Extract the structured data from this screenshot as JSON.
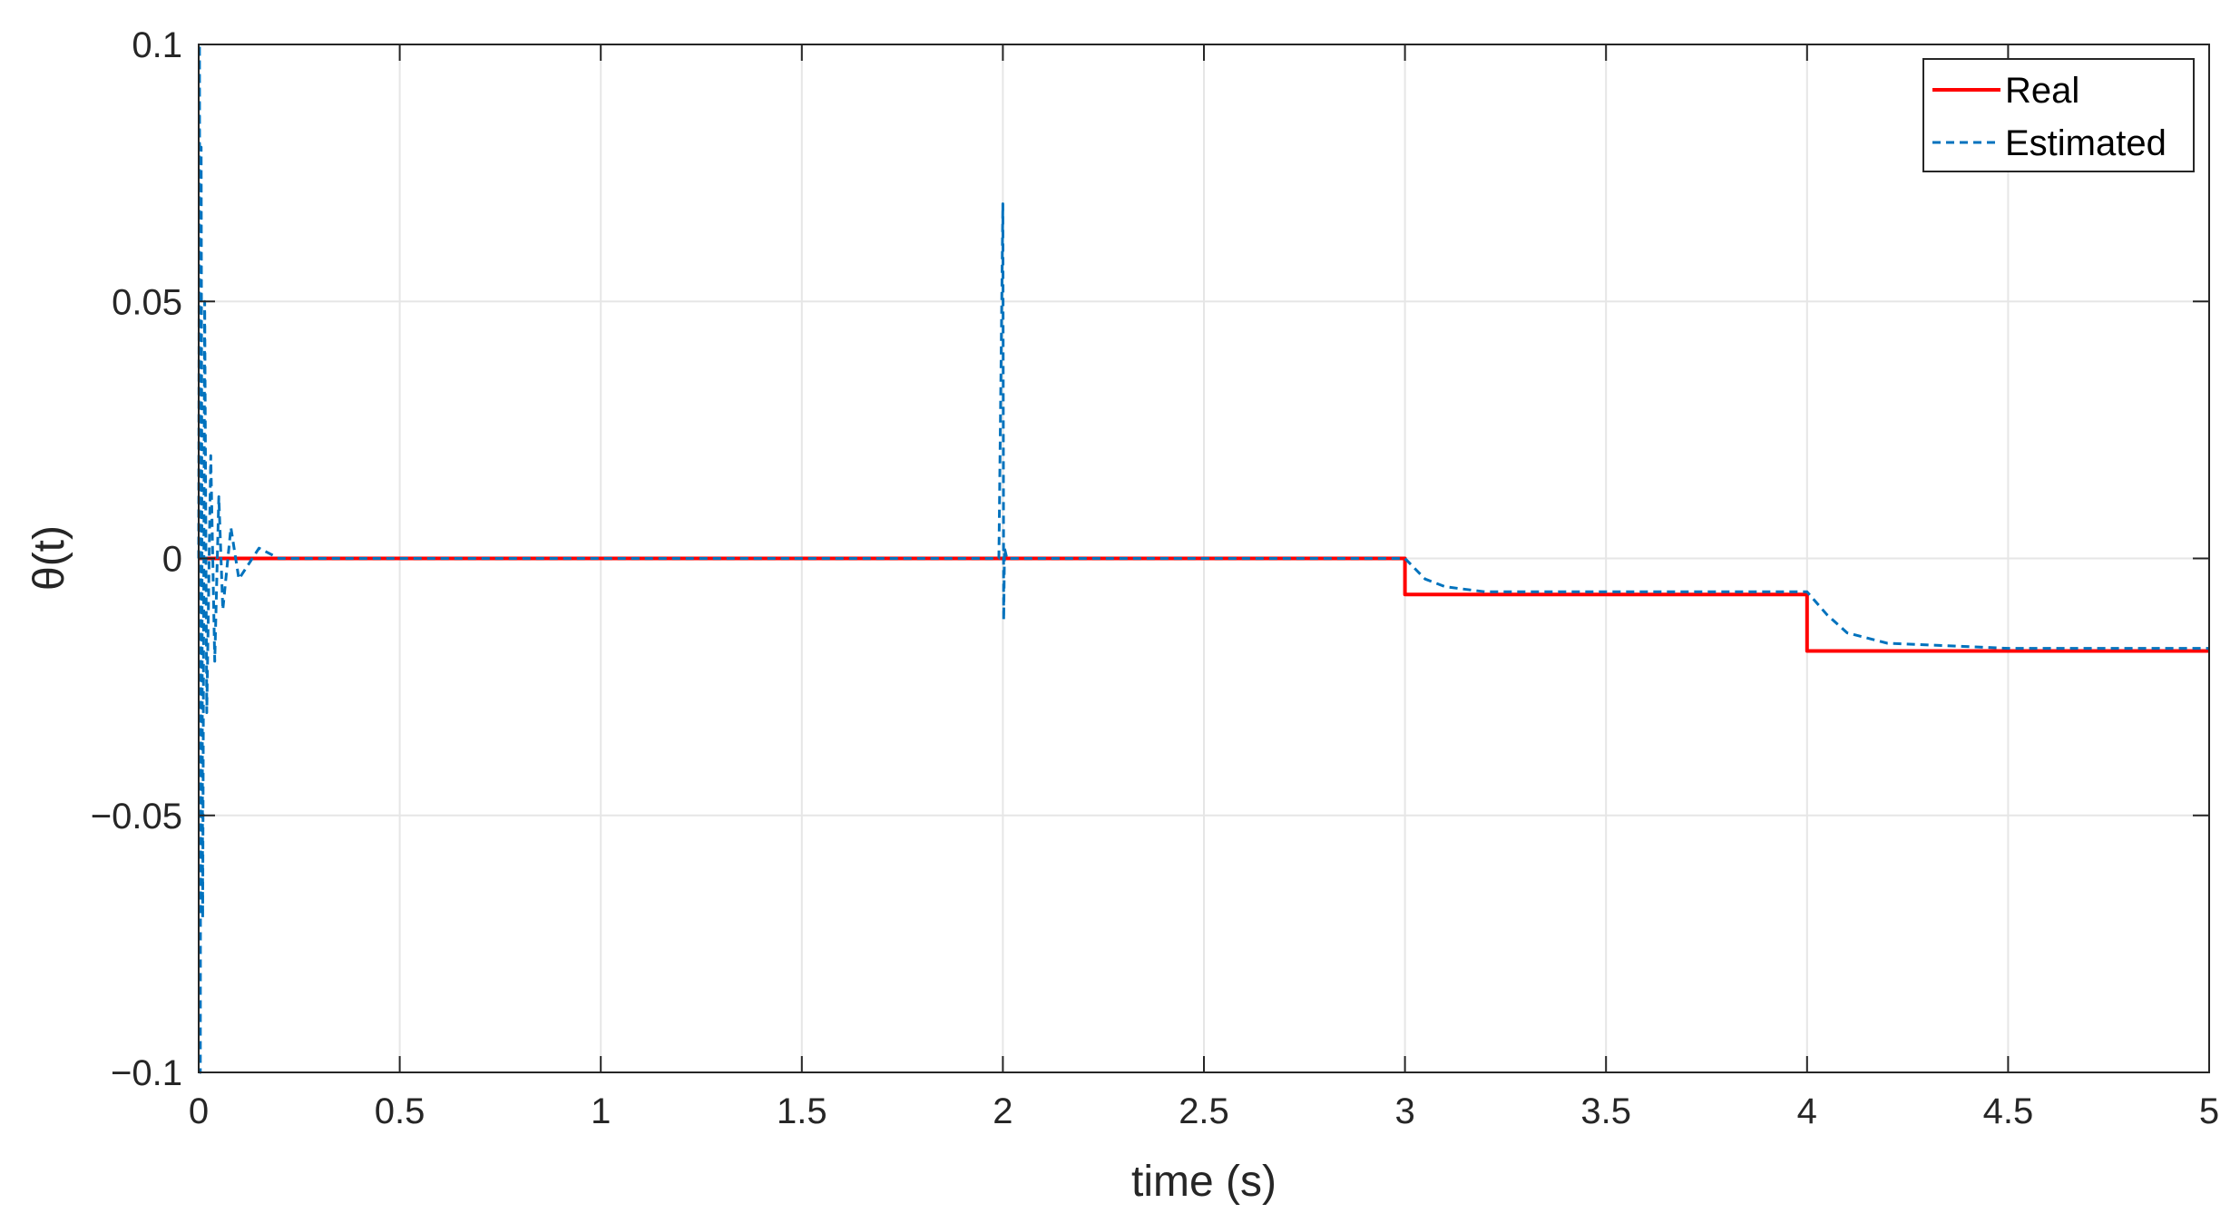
{
  "chart_data": {
    "type": "line",
    "xlabel": "time (s)",
    "ylabel": "θ(t)",
    "xlim": [
      0,
      5
    ],
    "ylim": [
      -0.1,
      0.1
    ],
    "xticks": [
      0,
      0.5,
      1,
      1.5,
      2,
      2.5,
      3,
      3.5,
      4,
      4.5,
      5
    ],
    "xtick_labels": [
      "0",
      "0.5",
      "1",
      "1.5",
      "2",
      "2.5",
      "3",
      "3.5",
      "4",
      "4.5",
      "5"
    ],
    "yticks": [
      -0.1,
      -0.05,
      0,
      0.05,
      0.1
    ],
    "ytick_labels": [
      "−0.1",
      "−0.05",
      "0",
      "0.05",
      "0.1"
    ],
    "grid": true,
    "legend": "top-right",
    "series": [
      {
        "name": "Real",
        "color": "#ff0000",
        "style": "solid",
        "x": [
          0,
          3,
          3,
          4,
          4,
          5
        ],
        "y": [
          0,
          0,
          -0.007,
          -0.007,
          -0.018,
          -0.018
        ]
      },
      {
        "name": "Estimated",
        "color": "#0072bd",
        "style": "dashed",
        "x": [
          0,
          0.002,
          0.004,
          0.006,
          0.01,
          0.015,
          0.02,
          0.03,
          0.04,
          0.05,
          0.06,
          0.08,
          0.1,
          0.15,
          0.2,
          0.5,
          1.0,
          1.5,
          1.99,
          2.0,
          2.002,
          2.004,
          2.01,
          2.5,
          3.0,
          3.05,
          3.1,
          3.2,
          3.5,
          4.0,
          4.05,
          4.1,
          4.2,
          4.5,
          5.0
        ],
        "y": [
          0,
          0.1,
          -0.1,
          0.08,
          -0.07,
          0.05,
          -0.03,
          0.02,
          -0.02,
          0.012,
          -0.01,
          0.006,
          -0.004,
          0.002,
          0,
          0,
          0,
          0,
          0,
          0.069,
          -0.012,
          0.002,
          0,
          0,
          0,
          -0.004,
          -0.0055,
          -0.0065,
          -0.0065,
          -0.0065,
          -0.011,
          -0.0145,
          -0.0165,
          -0.0175,
          -0.0175
        ]
      }
    ]
  }
}
